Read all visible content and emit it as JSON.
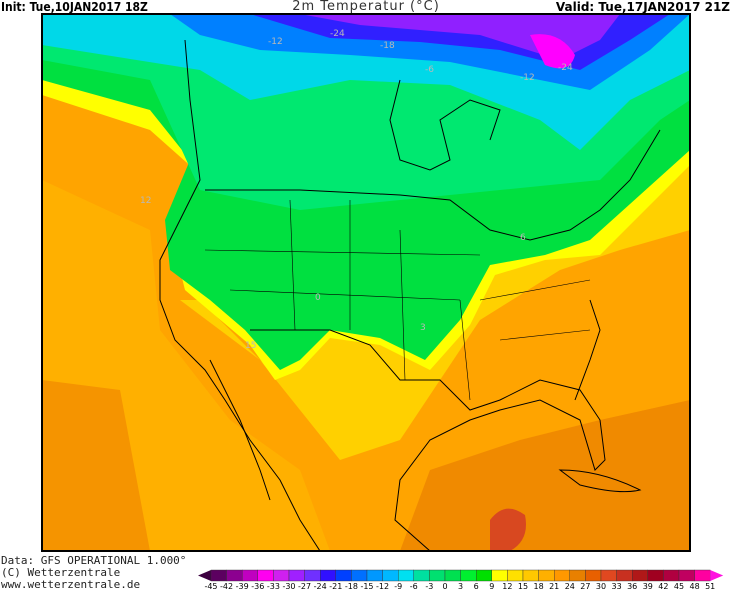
{
  "header": {
    "init": "Init: Tue,10JAN2017  18Z",
    "title": "2m Temperatur (°C)",
    "valid": "Valid: Tue,17JAN2017  21Z"
  },
  "footer": {
    "data_source": "Data: GFS OPERATIONAL 1.000°",
    "copyright": "(C) Wetterzentrale",
    "website": "www.wetterzentrale.de"
  },
  "map": {
    "region": "North America",
    "variable": "2m temperature",
    "contour_labels": [
      "-24",
      "-18",
      "-12",
      "-6",
      "-24",
      "-12",
      "12",
      "15",
      "0",
      "3",
      "6"
    ]
  },
  "colorbar": {
    "unit": "°C",
    "labels": [
      "-45",
      "-42",
      "-39",
      "-36",
      "-33",
      "-30",
      "-27",
      "-24",
      "-21",
      "-18",
      "-15",
      "-12",
      "-9",
      "-6",
      "-3",
      "0",
      "3",
      "6",
      "9",
      "12",
      "15",
      "18",
      "21",
      "24",
      "27",
      "30",
      "33",
      "36",
      "39",
      "42",
      "45",
      "48",
      "51"
    ],
    "low_arrow_color": "#3c0040",
    "high_arrow_color": "#ff10e0",
    "colors": [
      "#5c0060",
      "#8c0090",
      "#c000c0",
      "#ff00f0",
      "#d020f0",
      "#a020ff",
      "#7030ff",
      "#3010ff",
      "#0040ff",
      "#0070ff",
      "#0098ff",
      "#00b8ff",
      "#00e0f0",
      "#00e0a0",
      "#00e070",
      "#00e050",
      "#00f030",
      "#00e000",
      "#ffff00",
      "#ffe000",
      "#ffc800",
      "#ffb000",
      "#ff9800",
      "#e88000",
      "#e86000",
      "#e04820",
      "#c83020",
      "#b01818",
      "#a00020",
      "#b00040",
      "#c00060",
      "#ff00a0"
    ]
  }
}
